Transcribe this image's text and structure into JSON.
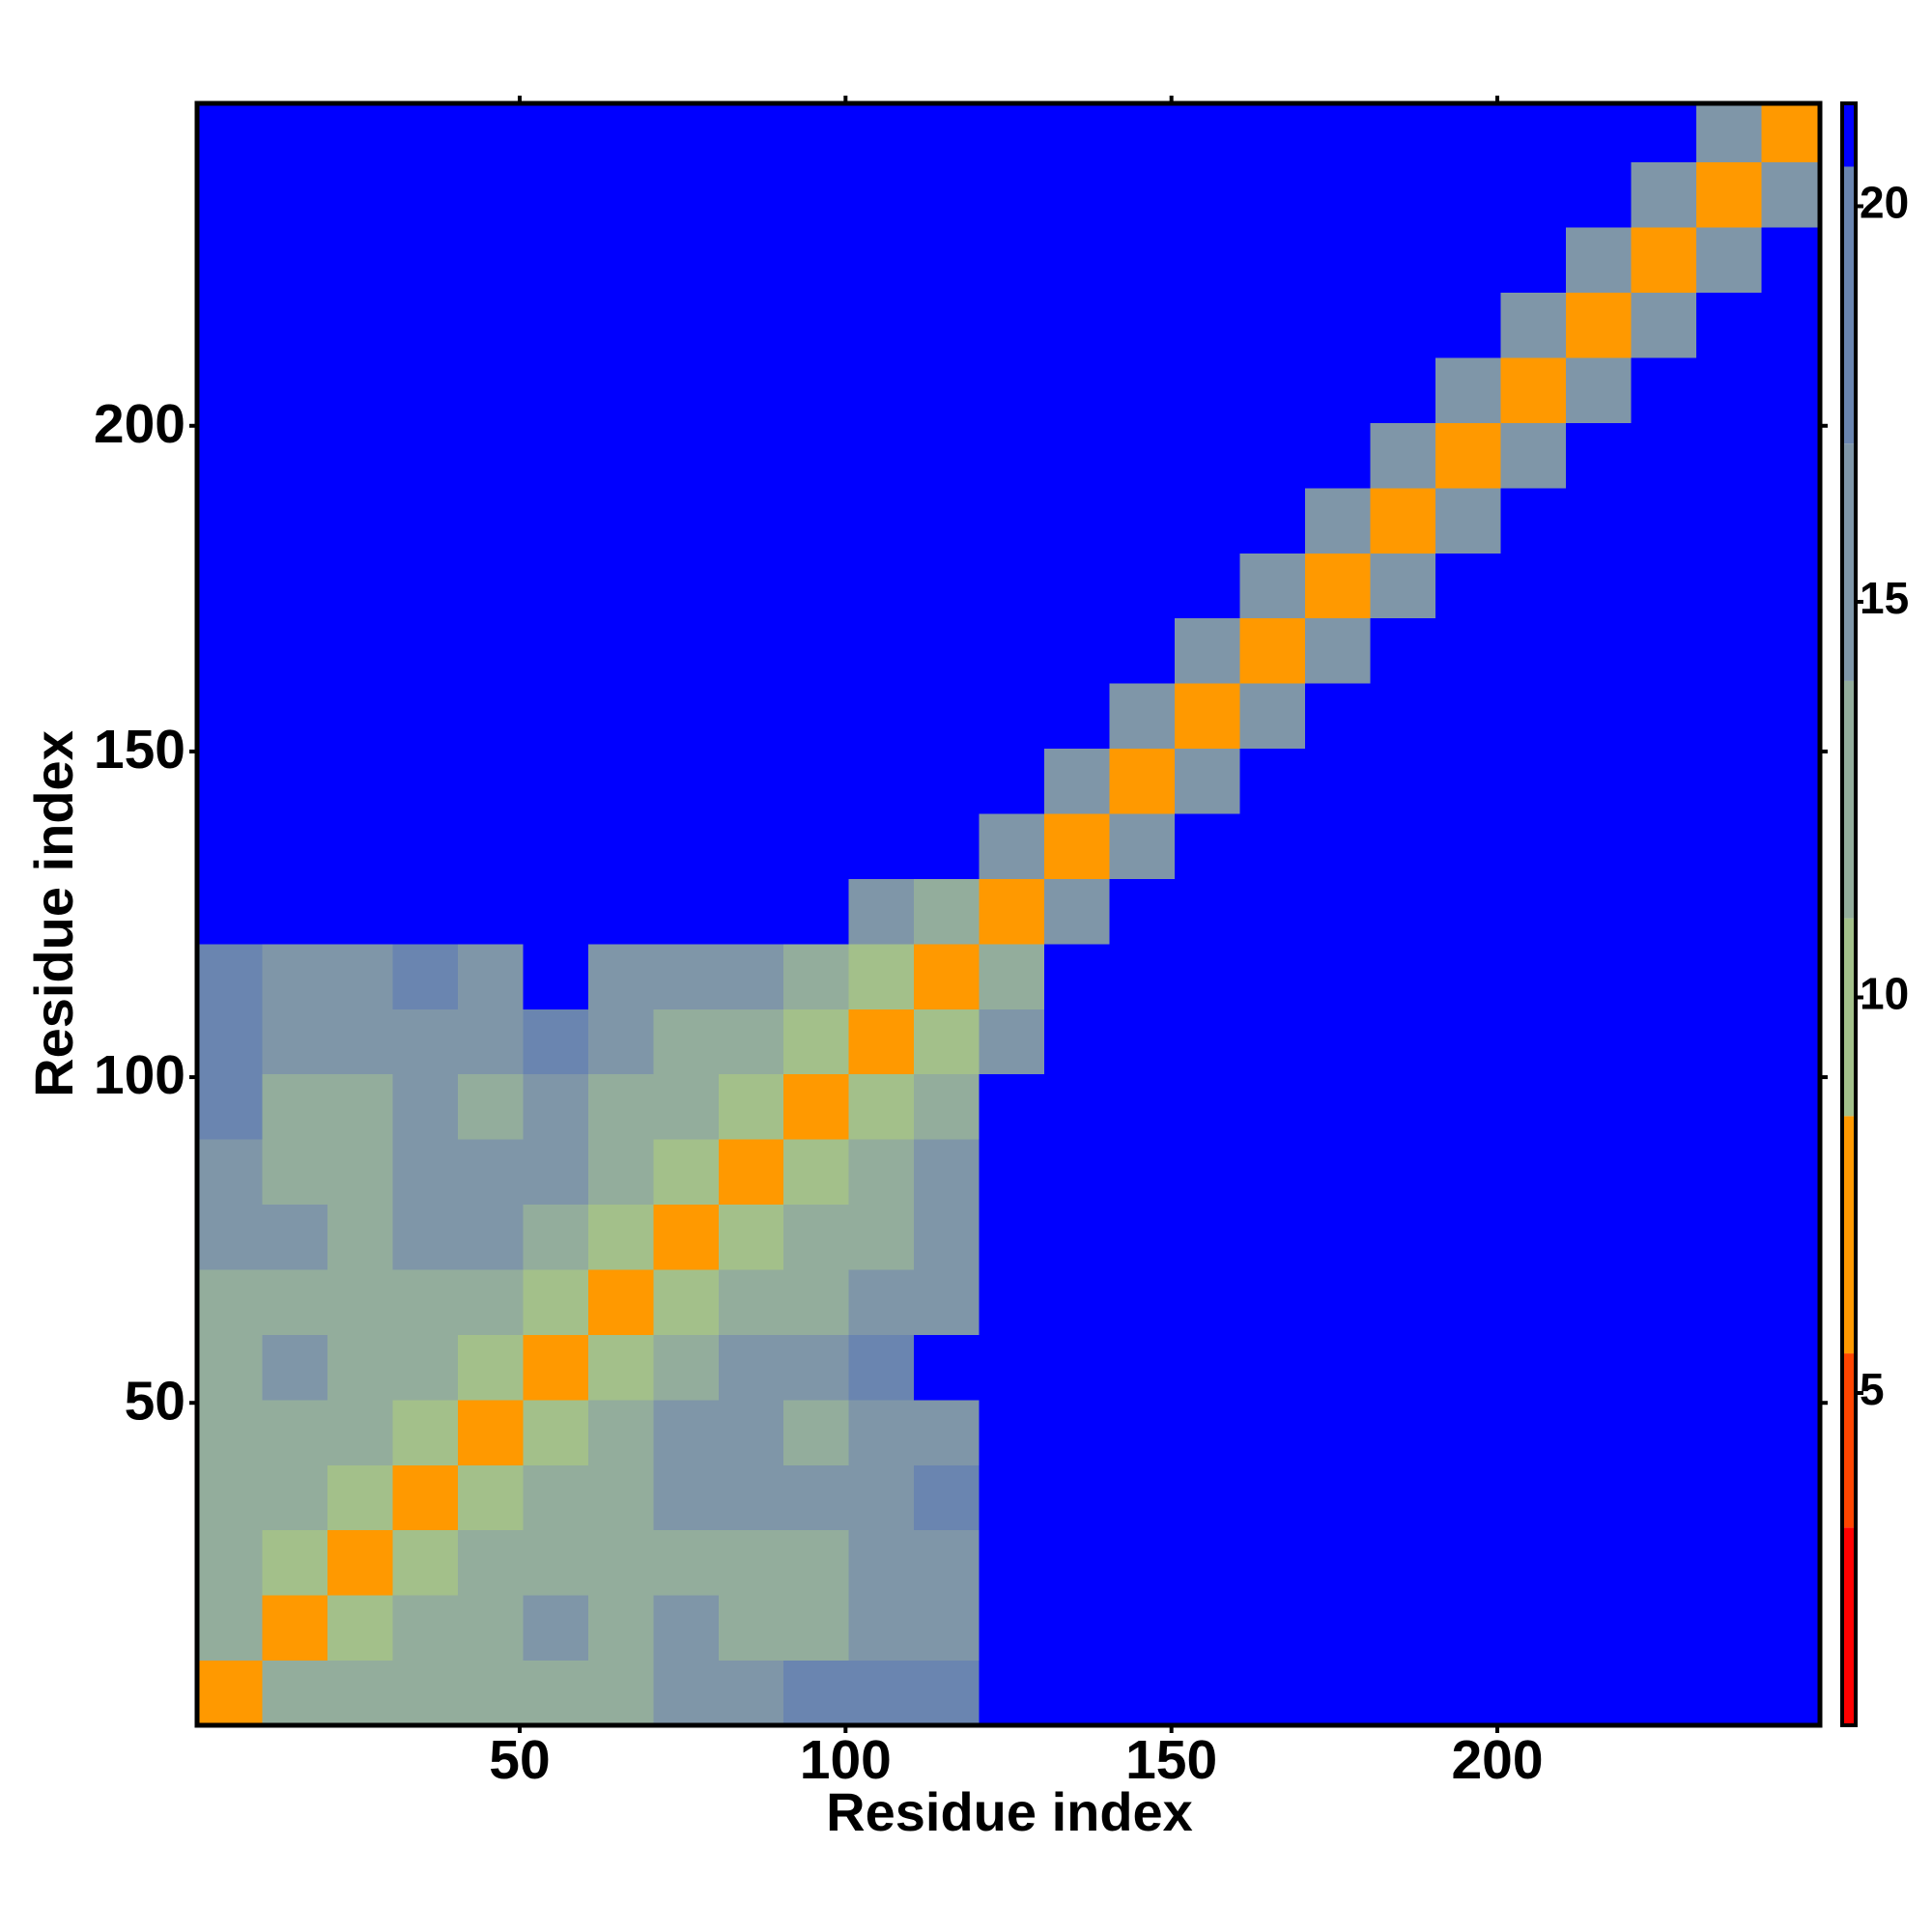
{
  "chart_data": {
    "type": "heatmap",
    "xlabel": "Residue index",
    "ylabel": "Residue index",
    "xbins": [
      0.5,
      10.5,
      20.5,
      30.5,
      40.5,
      50.5,
      60.5,
      70.5,
      80.5,
      90.5,
      100.5,
      110.5,
      120.5,
      130.5,
      140.5,
      150.5,
      160.5,
      170.5,
      180.5,
      190.5,
      200.5,
      210.5,
      220.5,
      230.5,
      240.5,
      249.5
    ],
    "ybins": [
      0.5,
      10.5,
      20.5,
      30.5,
      40.5,
      50.5,
      60.5,
      70.5,
      80.5,
      90.5,
      100.5,
      110.5,
      120.5,
      130.5,
      140.5,
      150.5,
      160.5,
      170.5,
      180.5,
      190.5,
      200.5,
      210.5,
      220.5,
      230.5,
      240.5,
      249.5
    ],
    "xlim": [
      0.5,
      249.5
    ],
    "ylim": [
      0.5,
      249.5
    ],
    "xticks": [
      50,
      100,
      150,
      200
    ],
    "yticks": [
      50,
      100,
      150,
      200
    ],
    "values": [
      [
        6,
        12,
        13,
        14,
        13,
        14,
        14,
        16,
        17,
        18,
        19,
        20,
        21,
        21,
        21,
        21,
        21,
        21,
        21,
        21,
        21,
        21,
        21,
        21,
        21
      ],
      [
        12,
        6,
        11,
        12,
        13,
        15,
        13,
        15,
        14,
        13,
        15,
        16,
        21,
        21,
        21,
        21,
        21,
        21,
        21,
        21,
        21,
        21,
        21,
        21,
        21
      ],
      [
        13,
        11,
        6,
        10,
        13,
        14,
        14,
        14,
        13,
        12,
        15,
        17,
        21,
        21,
        21,
        21,
        21,
        21,
        21,
        21,
        21,
        21,
        21,
        21,
        21
      ],
      [
        14,
        12,
        10,
        6,
        10,
        12,
        14,
        16,
        17,
        16,
        17,
        18,
        21,
        21,
        21,
        21,
        21,
        21,
        21,
        21,
        21,
        21,
        21,
        21,
        21
      ],
      [
        13,
        13,
        13,
        10,
        6,
        9,
        12,
        15,
        15,
        14,
        15,
        17,
        21,
        21,
        21,
        21,
        21,
        21,
        21,
        21,
        21,
        21,
        21,
        21,
        21
      ],
      [
        14,
        15,
        14,
        12,
        9,
        6,
        11,
        14,
        16,
        17,
        19,
        21,
        21,
        21,
        21,
        21,
        21,
        21,
        21,
        21,
        21,
        21,
        21,
        21,
        21
      ],
      [
        14,
        13,
        14,
        14,
        12,
        11,
        6,
        10,
        12,
        14,
        15,
        17,
        21,
        21,
        21,
        21,
        21,
        21,
        21,
        21,
        21,
        21,
        21,
        21,
        21
      ],
      [
        16,
        15,
        14,
        16,
        15,
        14,
        10,
        6,
        9,
        12,
        14,
        16,
        21,
        21,
        21,
        21,
        21,
        21,
        21,
        21,
        21,
        21,
        21,
        21,
        21
      ],
      [
        17,
        14,
        13,
        17,
        15,
        16,
        12,
        9,
        6,
        9,
        12,
        15,
        21,
        21,
        21,
        21,
        21,
        21,
        21,
        21,
        21,
        21,
        21,
        21,
        21
      ],
      [
        18,
        13,
        12,
        16,
        14,
        17,
        14,
        12,
        9,
        6,
        10,
        13,
        21,
        21,
        21,
        21,
        21,
        21,
        21,
        21,
        21,
        21,
        21,
        21,
        21
      ],
      [
        19,
        15,
        15,
        17,
        15,
        19,
        15,
        14,
        12,
        10,
        6,
        11,
        16,
        21,
        21,
        21,
        21,
        21,
        21,
        21,
        21,
        21,
        21,
        21,
        21
      ],
      [
        20,
        16,
        17,
        18,
        17,
        21,
        17,
        16,
        15,
        13,
        11,
        6,
        12,
        21,
        21,
        21,
        21,
        21,
        21,
        21,
        21,
        21,
        21,
        21,
        21
      ],
      [
        21,
        21,
        21,
        21,
        21,
        21,
        21,
        21,
        21,
        21,
        16,
        12,
        6,
        15,
        21,
        21,
        21,
        21,
        21,
        21,
        21,
        21,
        21,
        21,
        21
      ],
      [
        21,
        21,
        21,
        21,
        21,
        21,
        21,
        21,
        21,
        21,
        21,
        21,
        15,
        6,
        17,
        21,
        21,
        21,
        21,
        21,
        21,
        21,
        21,
        21,
        21
      ],
      [
        21,
        21,
        21,
        21,
        21,
        21,
        21,
        21,
        21,
        21,
        21,
        21,
        21,
        17,
        6,
        17,
        21,
        21,
        21,
        21,
        21,
        21,
        21,
        21,
        21
      ],
      [
        21,
        21,
        21,
        21,
        21,
        21,
        21,
        21,
        21,
        21,
        21,
        21,
        21,
        21,
        17,
        6,
        17,
        21,
        21,
        21,
        21,
        21,
        21,
        21,
        21
      ],
      [
        21,
        21,
        21,
        21,
        21,
        21,
        21,
        21,
        21,
        21,
        21,
        21,
        21,
        21,
        21,
        17,
        6,
        17,
        21,
        21,
        21,
        21,
        21,
        21,
        21
      ],
      [
        21,
        21,
        21,
        21,
        21,
        21,
        21,
        21,
        21,
        21,
        21,
        21,
        21,
        21,
        21,
        21,
        17,
        6,
        17,
        21,
        21,
        21,
        21,
        21,
        21
      ],
      [
        21,
        21,
        21,
        21,
        21,
        21,
        21,
        21,
        21,
        21,
        21,
        21,
        21,
        21,
        21,
        21,
        21,
        17,
        6,
        17,
        21,
        21,
        21,
        21,
        21
      ],
      [
        21,
        21,
        21,
        21,
        21,
        21,
        21,
        21,
        21,
        21,
        21,
        21,
        21,
        21,
        21,
        21,
        21,
        21,
        17,
        6,
        17,
        21,
        21,
        21,
        21
      ],
      [
        21,
        21,
        21,
        21,
        21,
        21,
        21,
        21,
        21,
        21,
        21,
        21,
        21,
        21,
        21,
        21,
        21,
        21,
        21,
        17,
        6,
        17,
        21,
        21,
        21
      ],
      [
        21,
        21,
        21,
        21,
        21,
        21,
        21,
        21,
        21,
        21,
        21,
        21,
        21,
        21,
        21,
        21,
        21,
        21,
        21,
        21,
        17,
        6,
        17,
        21,
        21
      ],
      [
        21,
        21,
        21,
        21,
        21,
        21,
        21,
        21,
        21,
        21,
        21,
        21,
        21,
        21,
        21,
        21,
        21,
        21,
        21,
        21,
        21,
        17,
        6,
        17,
        21
      ],
      [
        21,
        21,
        21,
        21,
        21,
        21,
        21,
        21,
        21,
        21,
        21,
        21,
        21,
        21,
        21,
        21,
        21,
        21,
        21,
        21,
        21,
        21,
        17,
        6,
        17
      ],
      [
        21,
        21,
        21,
        21,
        21,
        21,
        21,
        21,
        21,
        21,
        21,
        21,
        21,
        21,
        21,
        21,
        21,
        21,
        21,
        21,
        21,
        21,
        21,
        17,
        6
      ]
    ],
    "clim": [
      0.8,
      21.3
    ],
    "cticks": [
      5,
      10,
      15,
      20
    ],
    "colorscale": [
      [
        3.3,
        "#ff0000"
      ],
      [
        5.5,
        "#ff4500"
      ],
      [
        8.5,
        "#ff9900"
      ],
      [
        11,
        "#a3c08a"
      ],
      [
        14,
        "#93ad9c"
      ],
      [
        17,
        "#7f96a8"
      ],
      [
        20.5,
        "#6a85b0"
      ],
      [
        21.3,
        "#0000ff"
      ]
    ]
  }
}
